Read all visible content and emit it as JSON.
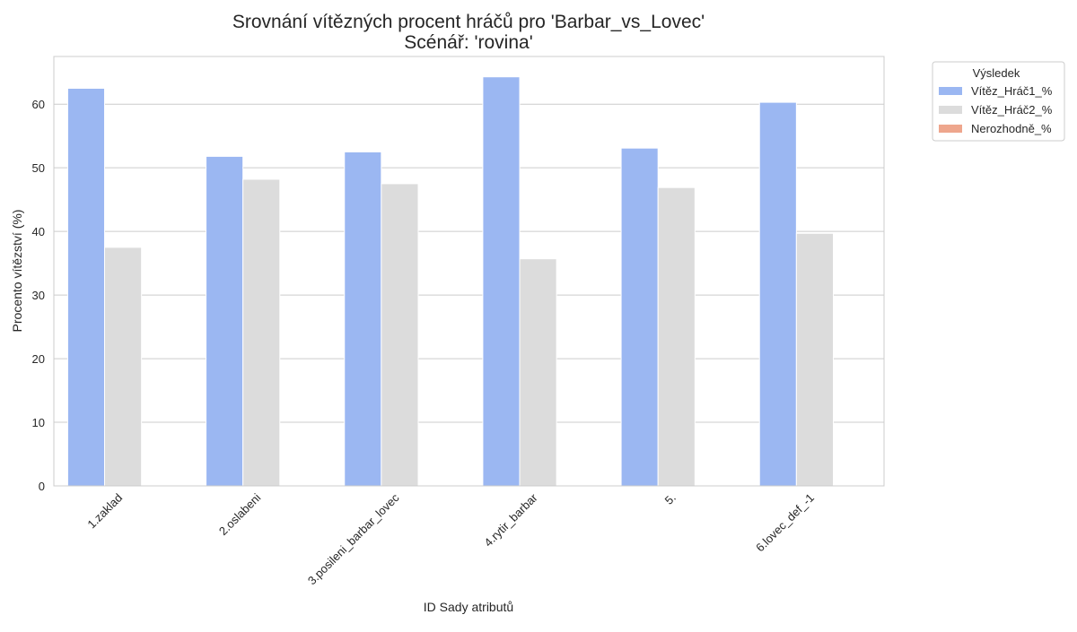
{
  "chart_data": {
    "type": "bar",
    "title": "Srovnání vítězných procent hráčů pro 'Barbar_vs_Lovec'",
    "subtitle": "Scénář: 'rovina'",
    "xlabel": "ID Sady atributů",
    "ylabel": "Procento vítězství (%)",
    "ylim": [
      0,
      67.5
    ],
    "yticks": [
      0,
      10,
      20,
      30,
      40,
      50,
      60
    ],
    "grid": true,
    "categories": [
      "1.zaklad",
      "2.oslabeni",
      "3.posileni_barbar_lovec",
      "4.rytir_barbar",
      "5.",
      "6.lovec_def_-1"
    ],
    "legend": {
      "title": "Výsledek",
      "placement": "outside-right"
    },
    "series": [
      {
        "name": "Vítěz_Hráč1_%",
        "color": "#9bb7f2",
        "values": [
          62.5,
          51.8,
          52.5,
          64.3,
          53.1,
          60.3
        ]
      },
      {
        "name": "Vítěz_Hráč2_%",
        "color": "#dcdcdc",
        "values": [
          37.5,
          48.2,
          47.5,
          35.7,
          46.9,
          39.7
        ]
      },
      {
        "name": "Nerozhodně_%",
        "color": "#eea68d",
        "values": [
          0,
          0,
          0,
          0,
          0,
          0
        ]
      }
    ]
  }
}
